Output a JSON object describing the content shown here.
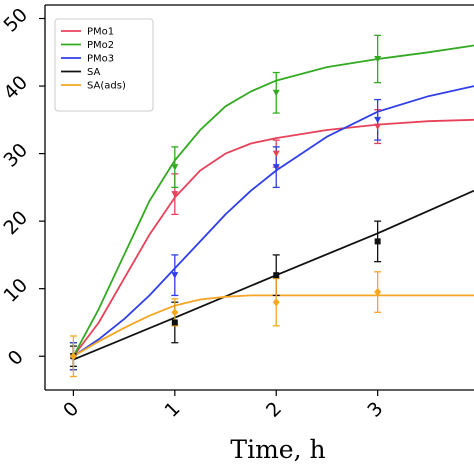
{
  "chart_data": {
    "type": "line",
    "xlabel": "Time, h",
    "ylabel": "",
    "xlim": [
      -0.28,
      3.95
    ],
    "ylim": [
      -5,
      52
    ],
    "xticks": [
      0,
      1,
      2,
      3
    ],
    "yticks": [
      0,
      10,
      20,
      30,
      40,
      50
    ],
    "xtick_labels": [
      "0",
      "1",
      "2",
      "3"
    ],
    "ytick_labels": [
      "0",
      "10",
      "20",
      "30",
      "40",
      "50"
    ],
    "legend_position": "top-left",
    "grid": false,
    "series": [
      {
        "name": "PMo1",
        "color": "#e8425a",
        "marker": "triangle-down",
        "points": [
          {
            "x": 0,
            "y": 0,
            "err": 2
          },
          {
            "x": 1,
            "y": 24,
            "err": 3
          },
          {
            "x": 2,
            "y": 30,
            "err": 2
          },
          {
            "x": 3,
            "y": 34,
            "err": 2.5
          }
        ],
        "fit": [
          [
            0,
            0
          ],
          [
            0.25,
            5
          ],
          [
            0.5,
            11.5
          ],
          [
            0.75,
            18
          ],
          [
            1,
            23.5
          ],
          [
            1.25,
            27.5
          ],
          [
            1.5,
            30
          ],
          [
            1.75,
            31.5
          ],
          [
            2,
            32.3
          ],
          [
            2.5,
            33.5
          ],
          [
            3,
            34.3
          ],
          [
            3.5,
            34.8
          ],
          [
            3.95,
            35
          ]
        ]
      },
      {
        "name": "PMo2",
        "color": "#33aa22",
        "marker": "triangle-down",
        "points": [
          {
            "x": 0,
            "y": 0,
            "err": 2
          },
          {
            "x": 1,
            "y": 28,
            "err": 3
          },
          {
            "x": 2,
            "y": 39,
            "err": 3
          },
          {
            "x": 3,
            "y": 44,
            "err": 3.5
          }
        ],
        "fit": [
          [
            0,
            0
          ],
          [
            0.25,
            7
          ],
          [
            0.5,
            15
          ],
          [
            0.75,
            23
          ],
          [
            1,
            29
          ],
          [
            1.25,
            33.5
          ],
          [
            1.5,
            37
          ],
          [
            1.75,
            39.2
          ],
          [
            2,
            40.8
          ],
          [
            2.5,
            42.8
          ],
          [
            3,
            44
          ],
          [
            3.5,
            45
          ],
          [
            3.95,
            46
          ]
        ]
      },
      {
        "name": "PMo3",
        "color": "#2f3fe8",
        "marker": "triangle-down",
        "points": [
          {
            "x": 0,
            "y": 0,
            "err": 2
          },
          {
            "x": 1,
            "y": 12,
            "err": 3
          },
          {
            "x": 2,
            "y": 28,
            "err": 3
          },
          {
            "x": 3,
            "y": 35,
            "err": 3
          }
        ],
        "fit": [
          [
            0,
            0
          ],
          [
            0.25,
            2.5
          ],
          [
            0.5,
            5.5
          ],
          [
            0.75,
            9
          ],
          [
            1,
            13
          ],
          [
            1.25,
            17
          ],
          [
            1.5,
            21
          ],
          [
            1.75,
            24.5
          ],
          [
            2,
            27.5
          ],
          [
            2.5,
            32.5
          ],
          [
            3,
            36.2
          ],
          [
            3.5,
            38.5
          ],
          [
            3.95,
            40
          ]
        ]
      },
      {
        "name": "SA",
        "color": "#111111",
        "marker": "square",
        "points": [
          {
            "x": 0,
            "y": 0,
            "err": 1.5
          },
          {
            "x": 1,
            "y": 5,
            "err": 3
          },
          {
            "x": 2,
            "y": 12,
            "err": 3
          },
          {
            "x": 3,
            "y": 17,
            "err": 3
          }
        ],
        "fit": [
          [
            0,
            -0.5
          ],
          [
            1,
            5.7
          ],
          [
            2,
            12
          ],
          [
            3,
            18.2
          ],
          [
            3.95,
            24.5
          ]
        ]
      },
      {
        "name": "SA(ads)",
        "color": "#f5a623",
        "marker": "diamond",
        "points": [
          {
            "x": 0,
            "y": 0,
            "err": 3
          },
          {
            "x": 1,
            "y": 6.5,
            "err": 2
          },
          {
            "x": 2,
            "y": 8,
            "err": 3.5
          },
          {
            "x": 3,
            "y": 9.5,
            "err": 3
          }
        ],
        "fit": [
          [
            0,
            0
          ],
          [
            0.25,
            2.2
          ],
          [
            0.5,
            4.2
          ],
          [
            0.75,
            6
          ],
          [
            1,
            7.5
          ],
          [
            1.25,
            8.4
          ],
          [
            1.5,
            8.8
          ],
          [
            1.75,
            9
          ],
          [
            2,
            9
          ],
          [
            2.5,
            9
          ],
          [
            3,
            9
          ],
          [
            3.5,
            9
          ],
          [
            3.95,
            9
          ]
        ]
      }
    ]
  }
}
